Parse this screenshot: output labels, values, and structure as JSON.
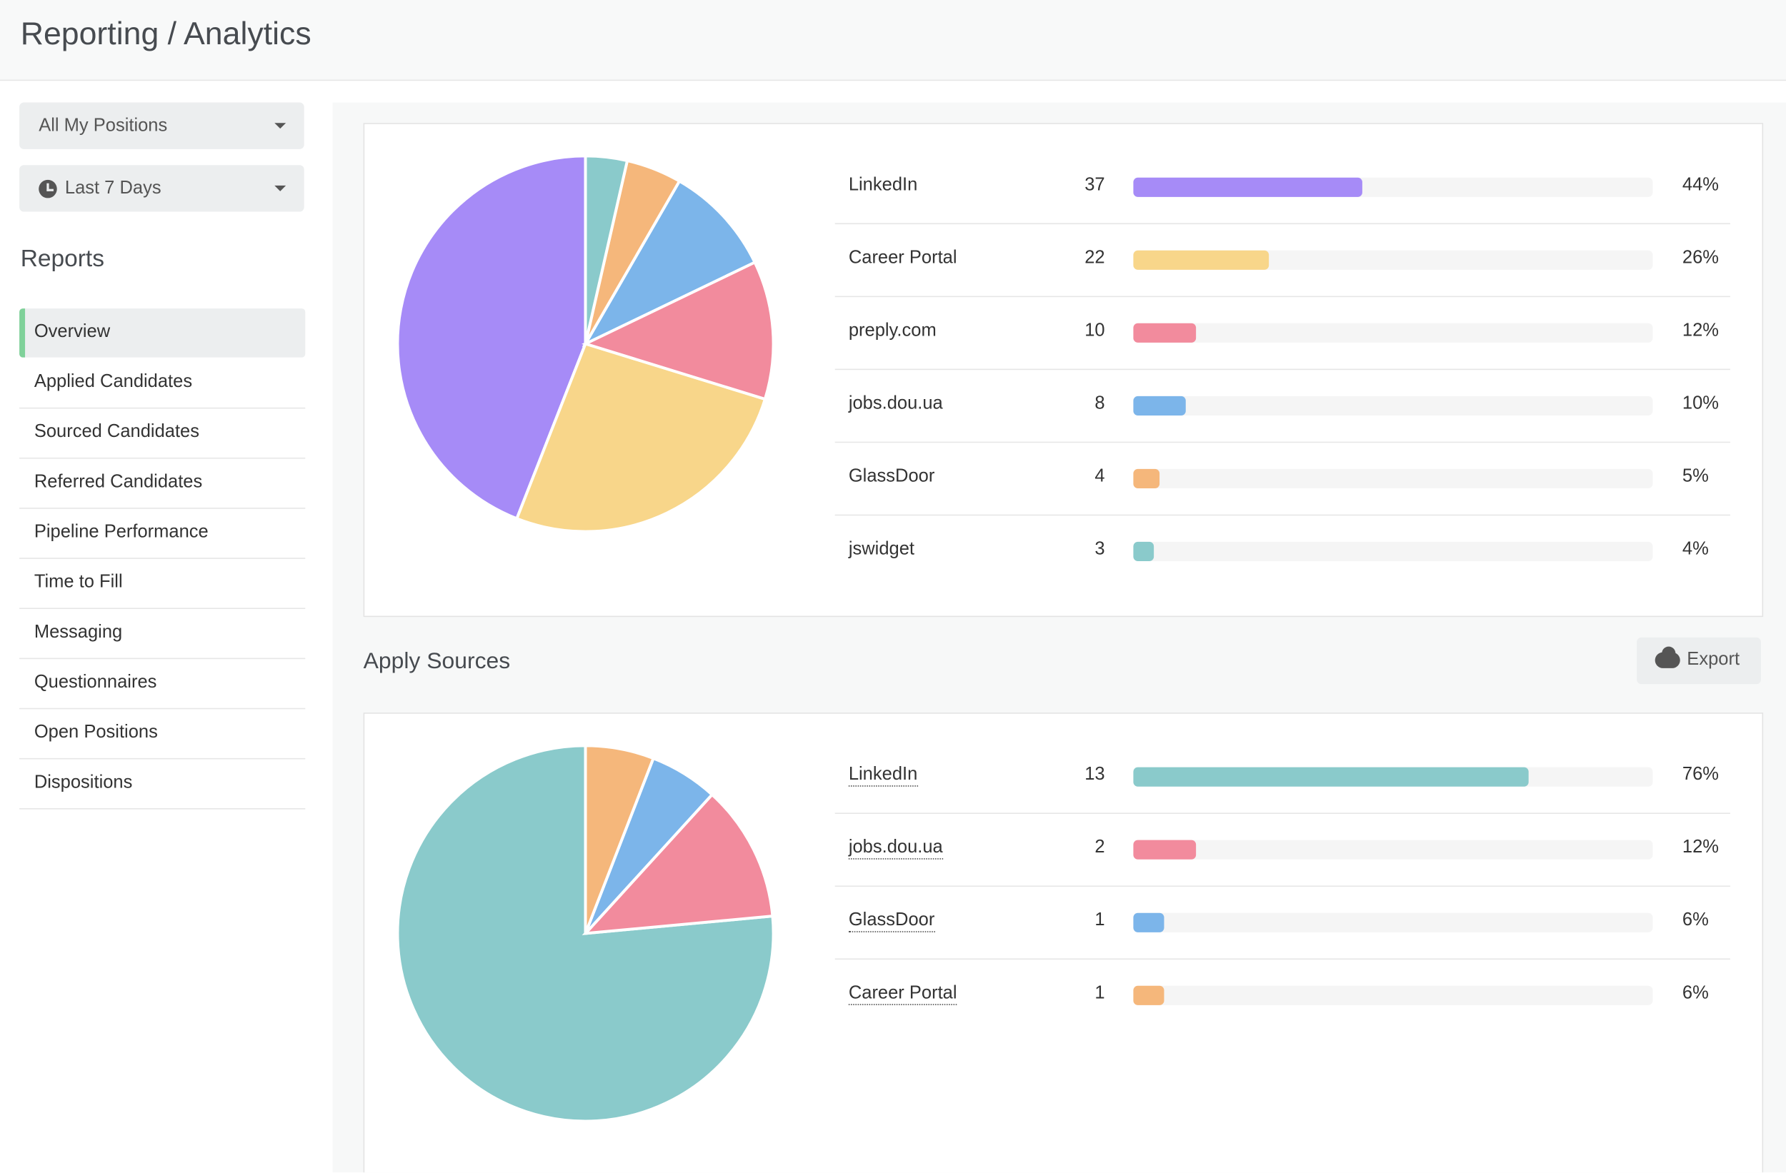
{
  "header": {
    "title": "Reporting / Analytics"
  },
  "filters": [
    "All My Positions",
    "Last 7 Days"
  ],
  "sidebar": {
    "title": "Reports",
    "items": [
      "Overview",
      "Applied Candidates",
      "Sourced Candidates",
      "Referred Candidates",
      "Pipeline Performance",
      "Time to Fill",
      "Messaging",
      "Questionnaires",
      "Open Positions",
      "Dispositions"
    ]
  },
  "panels": [
    {
      "type": "pie",
      "categories": [
        "LinkedIn",
        "Career Portal",
        "preply.com",
        "jobs.dou.ua",
        "GlassDoor",
        "jswidget"
      ],
      "counts": [
        37,
        22,
        10,
        8,
        4,
        3
      ],
      "percents": [
        44,
        26,
        12,
        10,
        5,
        4
      ],
      "value_labels": [
        "44%",
        "26%",
        "12%",
        "10%",
        "5%",
        "4%"
      ],
      "colors": [
        "#a68bf7",
        "#f8d68a",
        "#f28b9d",
        "#7cb5ea",
        "#f5b77b",
        "#8acacb"
      ],
      "xlim": [
        0,
        100
      ]
    },
    {
      "type": "pie",
      "title": "Apply Sources",
      "action": "Export",
      "categories": [
        "LinkedIn",
        "jobs.dou.ua",
        "GlassDoor",
        "Career Portal"
      ],
      "counts": [
        13,
        2,
        1,
        1
      ],
      "percents": [
        76,
        12,
        6,
        6
      ],
      "value_labels": [
        "76%",
        "12%",
        "6%",
        "6%"
      ],
      "colors": [
        "#8acacb",
        "#f28b9d",
        "#7cb5ea",
        "#f5b77b"
      ],
      "xlim": [
        0,
        100
      ]
    }
  ]
}
